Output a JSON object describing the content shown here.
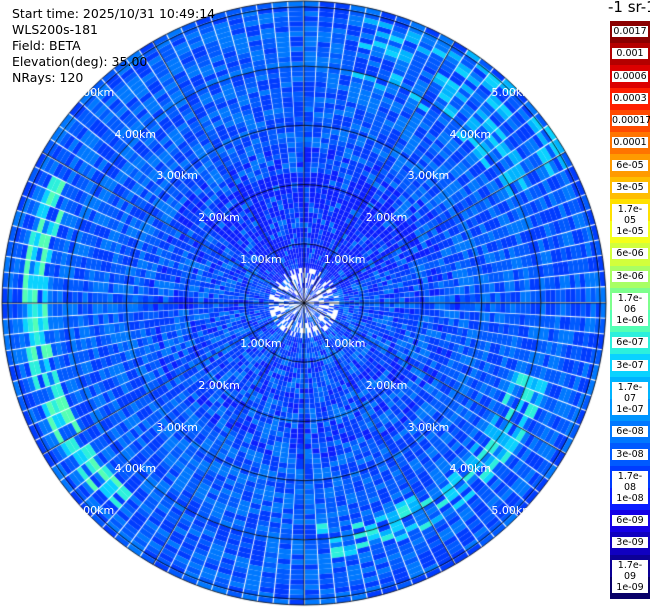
{
  "info": {
    "start_time": "Start time: 2025/10/31 10:49:14",
    "instrument": "WLS200s-181",
    "field": "Field: BETA",
    "elevation": "Elevation(deg): 35.00",
    "nrays": "NRays: 120"
  },
  "units": "-1 sr-1",
  "chart_data": {
    "type": "heatmap",
    "projection": "polar PPI scan",
    "field": "BETA",
    "elevation_deg": 35.0,
    "n_rays": 120,
    "range_ring_labels": [
      "1.00km",
      "2.00km",
      "3.00km",
      "4.00km",
      "5.00km"
    ],
    "range_ring_values_km": [
      1,
      2,
      3,
      4,
      5
    ],
    "max_range_km": 5.1,
    "colorbar": {
      "scale": "log",
      "tick_labels": [
        "0.0017",
        "0.001",
        "0.0006",
        "0.0003",
        "0.00017",
        "0.0001",
        "6e-05",
        "3e-05",
        "1.7e-05",
        "1e-05",
        "6e-06",
        "3e-06",
        "1.7e-06",
        "1e-06",
        "6e-07",
        "3e-07",
        "1.7e-07",
        "1e-07",
        "6e-08",
        "3e-08",
        "1.7e-08",
        "1e-08",
        "6e-09",
        "3e-09",
        "1.7e-09",
        "1e-09"
      ],
      "colors": [
        "#8b0000",
        "#b40000",
        "#dc0000",
        "#ff1e00",
        "#ff4a00",
        "#ff7400",
        "#ff9a00",
        "#ffbd00",
        "#ffe000",
        "#f4ff1a",
        "#d2ff3c",
        "#a8ff64",
        "#7dff8c",
        "#54ffb4",
        "#2cf0dc",
        "#0ad2ff",
        "#00b4ff",
        "#0096ff",
        "#0078ff",
        "#005aff",
        "#003cff",
        "#0a1eff",
        "#1400e6",
        "#1000c0",
        "#0c0096",
        "#080068"
      ]
    },
    "grid": true,
    "dominant_values": "mostly 1e-08 to 1e-07 (blue/cyan), with a high-beta arc ~4 km to the west-southwest and southeast (green/yellow, ~1e-06)"
  }
}
